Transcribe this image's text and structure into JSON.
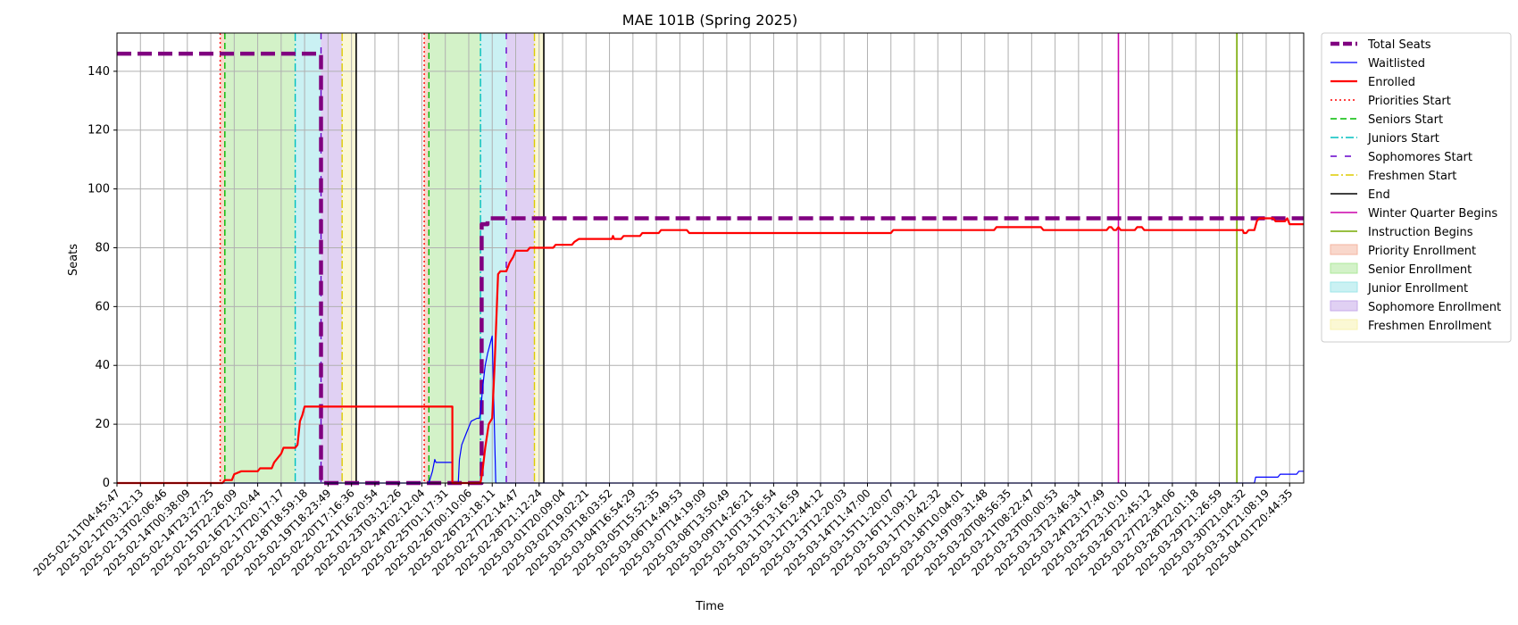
{
  "chart_data": {
    "type": "line",
    "title": "MAE 101B (Spring 2025)",
    "xlabel": "Time",
    "ylabel": "Seats",
    "ylim": [
      0,
      153
    ],
    "yticks": [
      0,
      20,
      40,
      60,
      80,
      100,
      120,
      140
    ],
    "grid": true,
    "legend_position": "outside-right",
    "x_tick_labels": [
      "2025-02-11T04:45:47",
      "2025-02-12T03:12:13",
      "2025-02-13T02:06:46",
      "2025-02-14T00:38:09",
      "2025-02-14T23:27:25",
      "2025-02-15T22:26:09",
      "2025-02-16T21:20:44",
      "2025-02-17T20:17:17",
      "2025-02-18T18:59:18",
      "2025-02-19T18:23:49",
      "2025-02-20T17:16:36",
      "2025-02-21T16:20:54",
      "2025-02-23T03:12:26",
      "2025-02-24T02:12:04",
      "2025-02-25T01:17:31",
      "2025-02-26T00:10:06",
      "2025-02-26T23:18:11",
      "2025-02-27T22:14:47",
      "2025-02-28T21:12:24",
      "2025-03-01T20:09:04",
      "2025-03-02T19:02:21",
      "2025-03-03T18:03:52",
      "2025-03-04T16:54:29",
      "2025-03-05T15:52:35",
      "2025-03-06T14:49:53",
      "2025-03-07T14:19:09",
      "2025-03-08T13:50:49",
      "2025-03-09T14:26:21",
      "2025-03-10T13:56:54",
      "2025-03-11T13:16:59",
      "2025-03-12T12:44:12",
      "2025-03-13T12:20:03",
      "2025-03-14T11:47:00",
      "2025-03-15T11:20:07",
      "2025-03-16T11:09:12",
      "2025-03-17T10:42:32",
      "2025-03-18T10:04:01",
      "2025-03-19T09:31:48",
      "2025-03-20T08:56:35",
      "2025-03-21T08:22:47",
      "2025-03-23T00:00:53",
      "2025-03-23T23:46:34",
      "2025-03-24T23:17:49",
      "2025-03-25T23:10:10",
      "2025-03-26T22:45:12",
      "2025-03-27T22:34:06",
      "2025-03-28T22:01:18",
      "2025-03-29T21:26:59",
      "2025-03-30T21:04:32",
      "2025-03-31T21:08:19",
      "2025-04-01T20:44:35"
    ],
    "x_tick_index_range": [
      0,
      50.6
    ],
    "series": [
      {
        "name": "Total Seats",
        "color": "#800080",
        "style": "dashed-thick",
        "points": [
          [
            0,
            146
          ],
          [
            8.7,
            146
          ],
          [
            8.7,
            0
          ],
          [
            13,
            0
          ],
          [
            15,
            0
          ],
          [
            15,
            0
          ],
          [
            15.55,
            0
          ],
          [
            15.55,
            88
          ],
          [
            15.8,
            88
          ],
          [
            15.8,
            90
          ],
          [
            50.6,
            90
          ]
        ]
      },
      {
        "name": "Waitlisted",
        "color": "#0000ff",
        "style": "solid-thin",
        "points": [
          [
            0,
            0
          ],
          [
            13.3,
            0
          ],
          [
            13.45,
            4
          ],
          [
            13.55,
            8
          ],
          [
            13.6,
            7
          ],
          [
            14.3,
            7
          ],
          [
            14.3,
            0
          ],
          [
            14.55,
            0
          ],
          [
            14.6,
            8
          ],
          [
            14.7,
            13
          ],
          [
            14.9,
            17
          ],
          [
            15.1,
            21
          ],
          [
            15.35,
            22
          ],
          [
            15.45,
            22
          ],
          [
            15.5,
            24
          ],
          [
            15.6,
            33
          ],
          [
            15.7,
            40
          ],
          [
            15.8,
            44
          ],
          [
            15.9,
            47
          ],
          [
            16.0,
            50
          ],
          [
            16.15,
            0
          ],
          [
            48.5,
            0
          ],
          [
            48.55,
            2
          ],
          [
            49.5,
            2
          ],
          [
            49.6,
            3
          ],
          [
            50.3,
            3
          ],
          [
            50.4,
            4
          ],
          [
            50.6,
            4
          ]
        ]
      },
      {
        "name": "Enrolled",
        "color": "#ff0000",
        "style": "solid",
        "points": [
          [
            0,
            0
          ],
          [
            4.5,
            0
          ],
          [
            4.6,
            1
          ],
          [
            4.9,
            1
          ],
          [
            5.0,
            3
          ],
          [
            5.3,
            4
          ],
          [
            6.0,
            4
          ],
          [
            6.1,
            5
          ],
          [
            6.6,
            5
          ],
          [
            6.7,
            7
          ],
          [
            7.0,
            10
          ],
          [
            7.1,
            12
          ],
          [
            7.6,
            12
          ],
          [
            7.7,
            13
          ],
          [
            7.8,
            21
          ],
          [
            7.9,
            23
          ],
          [
            8.0,
            26
          ],
          [
            8.2,
            26
          ],
          [
            14.3,
            26
          ],
          [
            14.3,
            0
          ],
          [
            14.5,
            0
          ],
          [
            15.5,
            0
          ],
          [
            15.6,
            5
          ],
          [
            15.7,
            12
          ],
          [
            15.85,
            20
          ],
          [
            16.0,
            22
          ],
          [
            16.1,
            40
          ],
          [
            16.25,
            71
          ],
          [
            16.35,
            72
          ],
          [
            16.6,
            72
          ],
          [
            16.75,
            75
          ],
          [
            16.9,
            77
          ],
          [
            17.0,
            79
          ],
          [
            17.5,
            79
          ],
          [
            17.6,
            80
          ],
          [
            18.6,
            80
          ],
          [
            18.7,
            81
          ],
          [
            19.4,
            81
          ],
          [
            19.5,
            82
          ],
          [
            19.7,
            83
          ],
          [
            21.1,
            83
          ],
          [
            21.15,
            84
          ],
          [
            21.2,
            83
          ],
          [
            21.5,
            83
          ],
          [
            21.6,
            84
          ],
          [
            22.3,
            84
          ],
          [
            22.4,
            85
          ],
          [
            23.1,
            85
          ],
          [
            23.2,
            86
          ],
          [
            24.3,
            86
          ],
          [
            24.4,
            85
          ],
          [
            33.0,
            85
          ],
          [
            33.1,
            86
          ],
          [
            37.4,
            86
          ],
          [
            37.5,
            87
          ],
          [
            39.4,
            87
          ],
          [
            39.5,
            86
          ],
          [
            42.2,
            86
          ],
          [
            42.3,
            87
          ],
          [
            42.4,
            87
          ],
          [
            42.5,
            86
          ],
          [
            42.6,
            86
          ],
          [
            42.7,
            87
          ],
          [
            42.8,
            86
          ],
          [
            43.4,
            86
          ],
          [
            43.5,
            87
          ],
          [
            43.7,
            87
          ],
          [
            43.8,
            86
          ],
          [
            48.0,
            86
          ],
          [
            48.05,
            85
          ],
          [
            48.15,
            85
          ],
          [
            48.25,
            86
          ],
          [
            48.5,
            86
          ],
          [
            48.6,
            89
          ],
          [
            48.7,
            90
          ],
          [
            49.3,
            90
          ],
          [
            49.4,
            89
          ],
          [
            49.8,
            89
          ],
          [
            49.9,
            90
          ],
          [
            50.0,
            88
          ],
          [
            50.6,
            88
          ]
        ]
      }
    ],
    "vertical_lines": [
      {
        "name": "Priorities Start",
        "color": "#ff0000",
        "style": "dotted",
        "x": [
          4.4,
          13.1
        ]
      },
      {
        "name": "Seniors Start",
        "color": "#00bb00",
        "style": "dashed",
        "x": [
          4.6,
          13.3
        ]
      },
      {
        "name": "Juniors Start",
        "color": "#00bfbf",
        "style": "dashdot",
        "x": [
          7.6,
          15.5
        ]
      },
      {
        "name": "Sophomores Start",
        "color": "#6600cc",
        "style": "loosedash",
        "x": [
          8.7,
          16.6
        ]
      },
      {
        "name": "Freshmen Start",
        "color": "#ddcc00",
        "style": "dashdot",
        "x": [
          9.6,
          17.8
        ]
      },
      {
        "name": "End",
        "color": "#000000",
        "style": "solid",
        "x": [
          10.2,
          18.2
        ]
      },
      {
        "name": "Winter Quarter Begins",
        "color": "#cc00aa",
        "style": "solid",
        "x": [
          42.7
        ]
      },
      {
        "name": "Instruction Begins",
        "color": "#77aa00",
        "style": "solid",
        "x": [
          47.75
        ]
      }
    ],
    "spans": [
      {
        "name": "Priority Enrollment",
        "color": "#f4b6a0",
        "ranges": [
          [
            4.4,
            4.6
          ],
          [
            13.1,
            13.3
          ]
        ]
      },
      {
        "name": "Senior Enrollment",
        "color": "#aee89a",
        "ranges": [
          [
            4.6,
            7.6
          ],
          [
            13.3,
            15.5
          ]
        ]
      },
      {
        "name": "Junior Enrollment",
        "color": "#9ee6ea",
        "ranges": [
          [
            7.6,
            8.7
          ],
          [
            15.5,
            16.6
          ]
        ]
      },
      {
        "name": "Sophomore Enrollment",
        "color": "#c6aaea",
        "ranges": [
          [
            8.7,
            9.6
          ],
          [
            16.6,
            17.8
          ]
        ]
      },
      {
        "name": "Freshmen Enrollment",
        "color": "#f7f2b0",
        "ranges": [
          [
            9.6,
            10.2
          ],
          [
            17.8,
            18.2
          ]
        ]
      }
    ],
    "legend": [
      "Total Seats",
      "Waitlisted",
      "Enrolled",
      "Priorities Start",
      "Seniors Start",
      "Juniors Start",
      "Sophomores Start",
      "Freshmen Start",
      "End",
      "Winter Quarter Begins",
      "Instruction Begins",
      "Priority Enrollment",
      "Senior Enrollment",
      "Junior Enrollment",
      "Sophomore Enrollment",
      "Freshmen Enrollment"
    ]
  }
}
